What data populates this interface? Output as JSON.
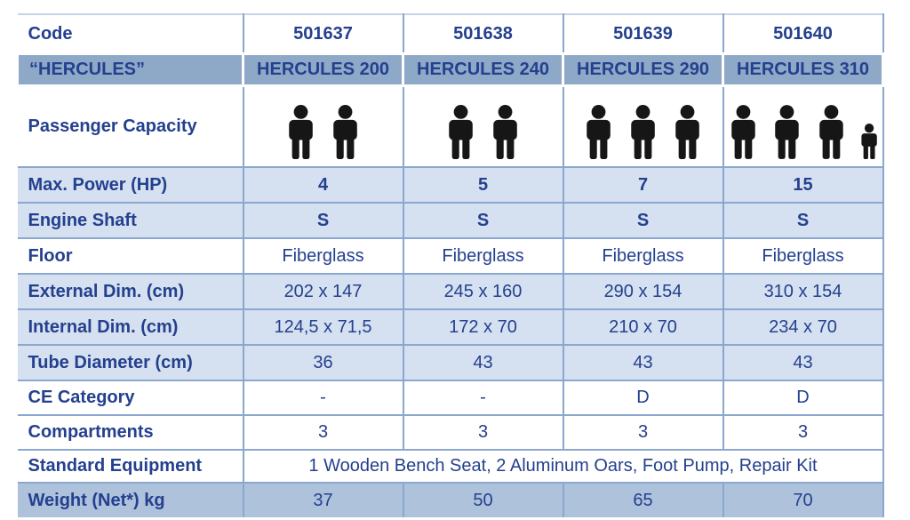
{
  "colors": {
    "text": "#24408E",
    "header_bg": "#8EA9C8",
    "light_bg": "#D5E0F0",
    "medium_bg": "#AEC2DC",
    "grid": "#8BA7CF",
    "top_line": "#C5D4E9",
    "icon": "#161616"
  },
  "rows": {
    "code": {
      "label": "Code",
      "values": [
        "501637",
        "501638",
        "501639",
        "501640"
      ]
    },
    "model": {
      "label": "“HERCULES”",
      "values": [
        "HERCULES 200",
        "HERCULES 240",
        "HERCULES 290",
        "HERCULES 310"
      ]
    },
    "passengers": {
      "label": "Passenger Capacity",
      "capacity": [
        {
          "adults": 2,
          "children": 0
        },
        {
          "adults": 2,
          "children": 0
        },
        {
          "adults": 3,
          "children": 0
        },
        {
          "adults": 3,
          "children": 1
        }
      ]
    },
    "power": {
      "label": "Max. Power (HP)",
      "values": [
        "4",
        "5",
        "7",
        "15"
      ]
    },
    "shaft": {
      "label": "Engine Shaft",
      "values": [
        "S",
        "S",
        "S",
        "S"
      ]
    },
    "floor": {
      "label": "Floor",
      "values": [
        "Fiberglass",
        "Fiberglass",
        "Fiberglass",
        "Fiberglass"
      ]
    },
    "external_dim": {
      "label": "External Dim. (cm)",
      "values": [
        "202 x 147",
        "245 x 160",
        "290 x 154",
        "310 x 154"
      ]
    },
    "internal_dim": {
      "label": "Internal Dim. (cm)",
      "values": [
        "124,5 x 71,5",
        "172 x 70",
        "210 x 70",
        "234 x 70"
      ]
    },
    "tube_diameter": {
      "label": "Tube Diameter (cm)",
      "values": [
        "36",
        "43",
        "43",
        "43"
      ]
    },
    "ce_category": {
      "label": "CE Category",
      "values": [
        "-",
        "-",
        "D",
        "D"
      ]
    },
    "compartments": {
      "label": "Compartments",
      "values": [
        "3",
        "3",
        "3",
        "3"
      ]
    },
    "equipment": {
      "label": "Standard Equipment",
      "value": "1 Wooden Bench Seat, 2 Aluminum Oars, Foot Pump, Repair Kit"
    },
    "weight": {
      "label": "Weight (Net*) kg",
      "values": [
        "37",
        "50",
        "65",
        "70"
      ]
    }
  }
}
